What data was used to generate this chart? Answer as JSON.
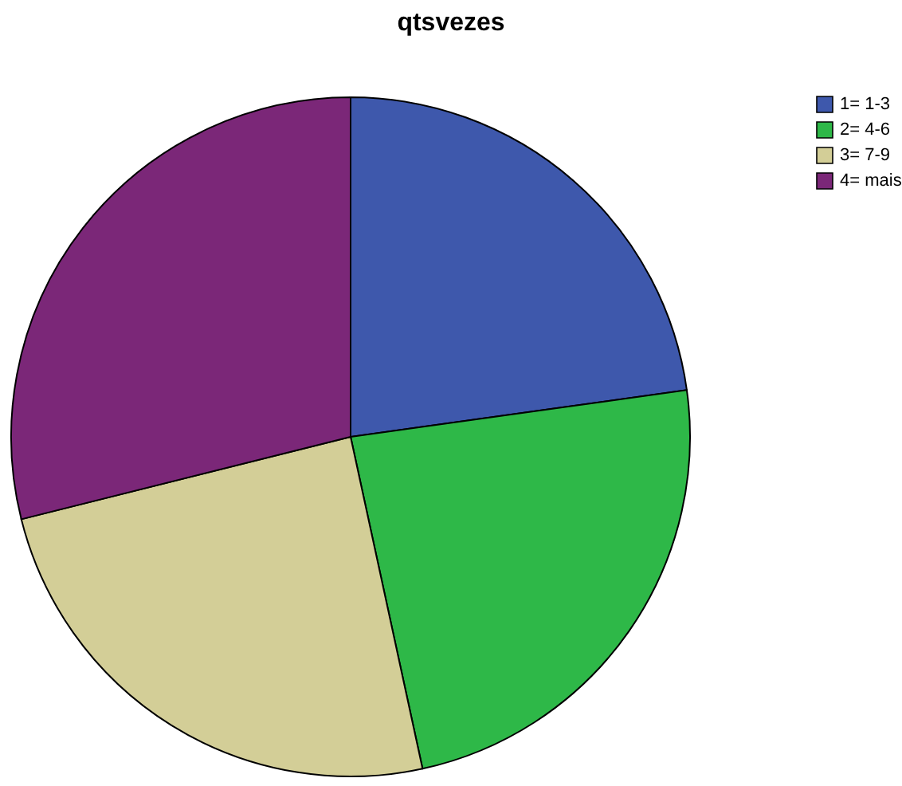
{
  "chart_data": {
    "type": "pie",
    "title": "qtsvezes",
    "categories": [
      "1= 1-3",
      "2= 4-6",
      "3= 7-9",
      "4= mais"
    ],
    "values": [
      22.8,
      23.8,
      24.5,
      28.9
    ],
    "colors": [
      "#3e58ac",
      "#2eb848",
      "#d3ce97",
      "#7b2778"
    ],
    "legend": "top right"
  }
}
